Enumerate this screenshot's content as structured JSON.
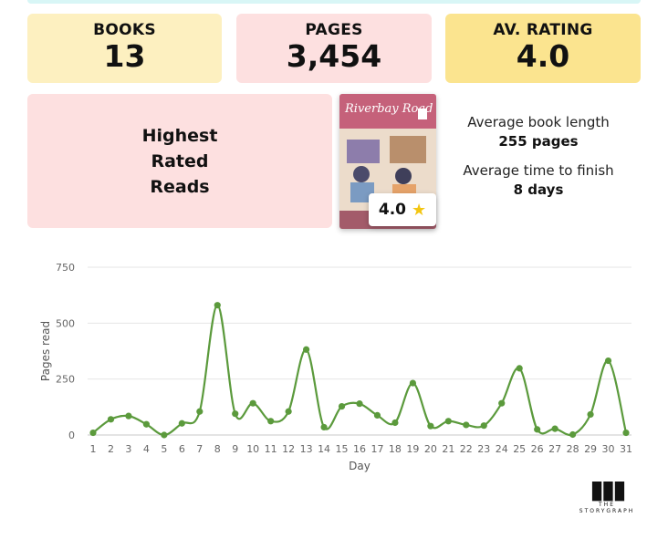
{
  "stats": {
    "books": {
      "label": "BOOKS",
      "value": "13"
    },
    "pages": {
      "label": "PAGES",
      "value": "3,454"
    },
    "rating": {
      "label": "AV. RATING",
      "value": "4.0"
    }
  },
  "highest": {
    "line1": "Highest",
    "line2": "Rated",
    "line3": "Reads"
  },
  "book": {
    "title": "Riverbay Road",
    "rating": "4.0",
    "star_icon": "star-icon"
  },
  "averages": {
    "length_label": "Average book length",
    "length_value": "255 pages",
    "time_label": "Average time to finish",
    "time_value": "8 days"
  },
  "logo": {
    "line1": "THE",
    "line2": "STORYGRAPH"
  },
  "chart_data": {
    "type": "line",
    "xlabel": "Day",
    "ylabel": "Pages read",
    "ylim": [
      0,
      750
    ],
    "yticks": [
      0,
      250,
      500,
      750
    ],
    "x": [
      1,
      2,
      3,
      4,
      5,
      6,
      7,
      8,
      9,
      10,
      11,
      12,
      13,
      14,
      15,
      16,
      17,
      18,
      19,
      20,
      21,
      22,
      23,
      24,
      25,
      26,
      27,
      28,
      29,
      30,
      31
    ],
    "series": [
      {
        "color": "#5b9a3c",
        "values": [
          10,
          70,
          85,
          48,
          0,
          52,
          105,
          580,
          95,
          142,
          62,
          105,
          382,
          35,
          128,
          140,
          88,
          55,
          232,
          40,
          62,
          45,
          42,
          142,
          298,
          25,
          28,
          2,
          92,
          332,
          10
        ]
      }
    ],
    "grid": true,
    "legend": "none"
  }
}
